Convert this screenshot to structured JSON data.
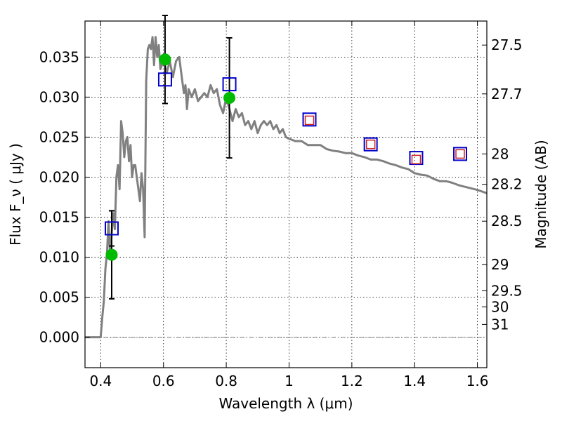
{
  "chart_data": {
    "type": "line",
    "xlabel": "Wavelength  λ (μm)",
    "ylabel": "Flux  F_ν  ( μJy )",
    "ylabel_right": "Magnitude (AB)",
    "xlim": [
      0.35,
      1.63
    ],
    "ylim": [
      -0.0038,
      0.0395
    ],
    "grid": true,
    "x_ticks": [
      0.4,
      0.6,
      0.8,
      1.0,
      1.2,
      1.4,
      1.6
    ],
    "x_tick_labels": [
      "0.4",
      "0.6",
      "0.8",
      "1",
      "1.2",
      "1.4",
      "1.6"
    ],
    "y_ticks": [
      0.0,
      0.005,
      0.01,
      0.015,
      0.02,
      0.025,
      0.03,
      0.035
    ],
    "y_tick_labels": [
      "0.000",
      "0.005",
      "0.010",
      "0.015",
      "0.020",
      "0.025",
      "0.030",
      "0.035"
    ],
    "mag_ticks": [
      {
        "label": "27.5",
        "flux": 0.0365
      },
      {
        "label": "27.7",
        "flux": 0.0304
      },
      {
        "label": "28",
        "flux": 0.0229
      },
      {
        "label": "28.2",
        "flux": 0.0191
      },
      {
        "label": "28.5",
        "flux": 0.0145
      },
      {
        "label": "29",
        "flux": 0.0091
      },
      {
        "label": "29.5",
        "flux": 0.0058
      },
      {
        "label": "30",
        "flux": 0.0038
      },
      {
        "label": "31",
        "flux": 0.0016
      }
    ],
    "series": [
      {
        "kind": "model-sed-line",
        "color": "#808080",
        "x": [
          0.35,
          0.4,
          0.405,
          0.41,
          0.415,
          0.42,
          0.425,
          0.43,
          0.435,
          0.44,
          0.445,
          0.45,
          0.455,
          0.46,
          0.465,
          0.47,
          0.475,
          0.48,
          0.485,
          0.49,
          0.495,
          0.5,
          0.505,
          0.51,
          0.515,
          0.52,
          0.525,
          0.53,
          0.535,
          0.54,
          0.545,
          0.55,
          0.555,
          0.56,
          0.565,
          0.57,
          0.575,
          0.58,
          0.585,
          0.59,
          0.595,
          0.6,
          0.61,
          0.62,
          0.63,
          0.64,
          0.65,
          0.66,
          0.665,
          0.67,
          0.675,
          0.68,
          0.69,
          0.7,
          0.71,
          0.72,
          0.73,
          0.74,
          0.75,
          0.76,
          0.77,
          0.78,
          0.79,
          0.8,
          0.81,
          0.82,
          0.83,
          0.84,
          0.85,
          0.86,
          0.87,
          0.88,
          0.89,
          0.9,
          0.91,
          0.92,
          0.93,
          0.94,
          0.95,
          0.96,
          0.97,
          0.98,
          0.99,
          1.0,
          1.02,
          1.04,
          1.06,
          1.08,
          1.1,
          1.12,
          1.14,
          1.16,
          1.18,
          1.2,
          1.22,
          1.24,
          1.26,
          1.28,
          1.3,
          1.32,
          1.34,
          1.36,
          1.38,
          1.4,
          1.42,
          1.44,
          1.46,
          1.48,
          1.5,
          1.52,
          1.54,
          1.56,
          1.58,
          1.6,
          1.63
        ],
        "y": [
          0.0,
          0.0,
          0.0025,
          0.0045,
          0.0085,
          0.0105,
          0.0145,
          0.01,
          0.013,
          0.0155,
          0.0135,
          0.02,
          0.0215,
          0.0185,
          0.027,
          0.0255,
          0.0225,
          0.0245,
          0.025,
          0.022,
          0.024,
          0.02,
          0.0215,
          0.0215,
          0.02,
          0.0185,
          0.017,
          0.0205,
          0.0185,
          0.0125,
          0.032,
          0.036,
          0.0365,
          0.036,
          0.0375,
          0.034,
          0.0375,
          0.035,
          0.0365,
          0.0335,
          0.034,
          0.035,
          0.033,
          0.0345,
          0.0325,
          0.0345,
          0.035,
          0.032,
          0.0305,
          0.0315,
          0.0285,
          0.031,
          0.03,
          0.031,
          0.0295,
          0.03,
          0.0305,
          0.03,
          0.0315,
          0.0305,
          0.031,
          0.029,
          0.028,
          0.03,
          0.0285,
          0.027,
          0.0285,
          0.0275,
          0.028,
          0.0265,
          0.027,
          0.026,
          0.027,
          0.0255,
          0.0265,
          0.027,
          0.0265,
          0.027,
          0.026,
          0.0265,
          0.0255,
          0.026,
          0.025,
          0.0248,
          0.0245,
          0.0245,
          0.024,
          0.024,
          0.024,
          0.0235,
          0.0233,
          0.0232,
          0.023,
          0.023,
          0.0227,
          0.0225,
          0.0222,
          0.0222,
          0.022,
          0.0217,
          0.0215,
          0.0212,
          0.021,
          0.0205,
          0.0203,
          0.0202,
          0.0198,
          0.0195,
          0.0195,
          0.0193,
          0.019,
          0.0188,
          0.0186,
          0.0184,
          0.018
        ]
      },
      {
        "kind": "observed-flux",
        "color": "#0000cc",
        "x": [
          0.435,
          0.605,
          0.81,
          1.065,
          1.26,
          1.405,
          1.545
        ],
        "y": [
          0.0136,
          0.0322,
          0.0316,
          0.0272,
          0.0241,
          0.0224,
          0.0229
        ],
        "yerr": [
          0.0022,
          0.0,
          0.0,
          0.0,
          0.0,
          0.0,
          0.0
        ],
        "marker": "open-square"
      },
      {
        "kind": "model-flux",
        "color": "#00bb00",
        "x": [
          0.435,
          0.605,
          0.81
        ],
        "y": [
          0.0103,
          0.0347,
          0.0299
        ],
        "yerr": [
          0.0055,
          0.0055,
          0.0075
        ],
        "marker": "filled-circle"
      },
      {
        "kind": "model-flux-nir",
        "color": "#cc2222",
        "x": [
          1.065,
          1.26,
          1.405,
          1.545
        ],
        "y": [
          0.0271,
          0.0241,
          0.0222,
          0.0229
        ],
        "marker": "open-square-small"
      }
    ]
  }
}
